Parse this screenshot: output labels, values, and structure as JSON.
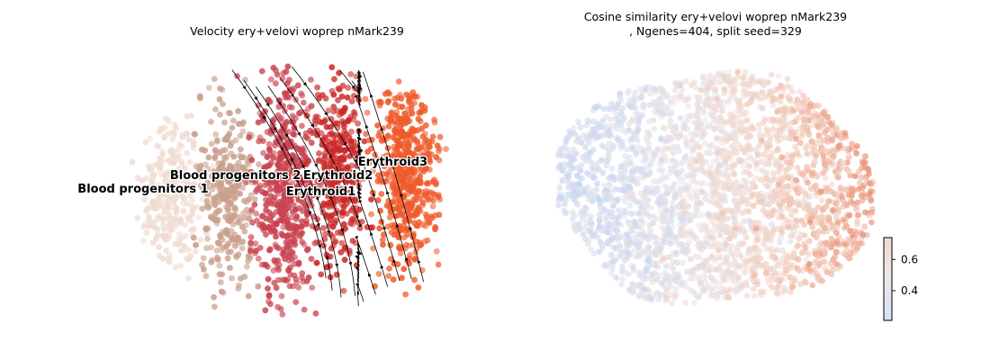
{
  "chart_data": [
    {
      "type": "scatter",
      "title": "Velocity ery+velovi woprep nMark239",
      "xlabel": "",
      "ylabel": "",
      "overlay": "velocity streamlines with arrows",
      "axes_visible": false,
      "clusters": [
        {
          "name": "Blood progenitors 1",
          "color": "#f0dcd2",
          "center": [
            0.13,
            0.55
          ],
          "spread": [
            0.09,
            0.32
          ],
          "count": 260
        },
        {
          "name": "Blood progenitors 2",
          "color": "#c9a08c",
          "center": [
            0.3,
            0.52
          ],
          "spread": [
            0.08,
            0.36
          ],
          "count": 320
        },
        {
          "name": "Erythroid1",
          "color": "#c9424f",
          "center": [
            0.47,
            0.52
          ],
          "spread": [
            0.09,
            0.4
          ],
          "count": 520
        },
        {
          "name": "Erythroid2",
          "color": "#cc2a2a",
          "center": [
            0.62,
            0.45
          ],
          "spread": [
            0.07,
            0.36
          ],
          "count": 360
        },
        {
          "name": "Erythroid3",
          "color": "#f05a2b",
          "center": [
            0.82,
            0.45
          ],
          "spread": [
            0.09,
            0.36
          ],
          "count": 520
        }
      ]
    },
    {
      "type": "scatter",
      "title": "Cosine similarity ery+velovi woprep nMark239",
      "subtitle": ", Ngenes=404, split seed=329",
      "xlabel": "",
      "ylabel": "",
      "axes_visible": false,
      "colormap": [
        "#c6d6f2",
        "#eae3e6",
        "#f2c9b6",
        "#e8866a"
      ],
      "colorbar": {
        "range": [
          0.21,
          0.74
        ],
        "ticks": [
          {
            "value": 0.4,
            "label": "0.4"
          },
          {
            "value": 0.6,
            "label": "0.6"
          }
        ]
      },
      "value_trend": "low (blue, ~0.3) on the left, high (red, ~0.65) on the right"
    }
  ]
}
